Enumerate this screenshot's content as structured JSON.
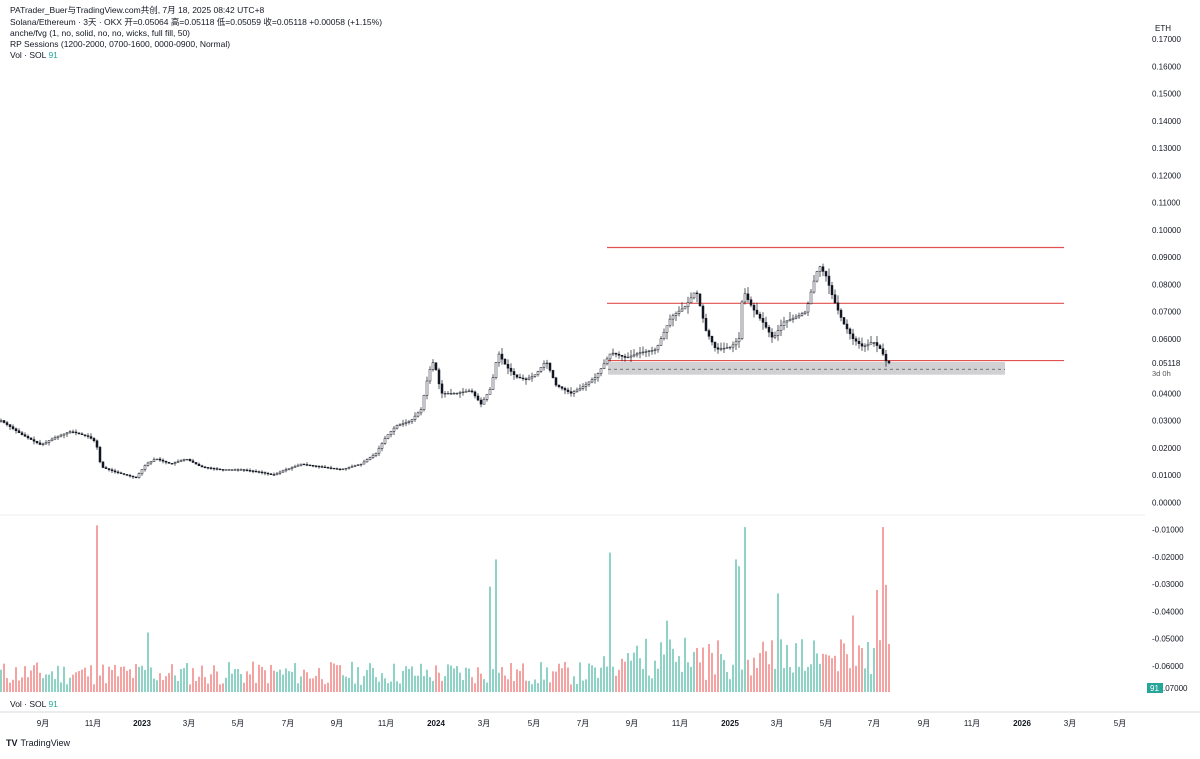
{
  "header": {
    "attribution": "PATrader_Buer与TradingView.com共创,  7月 18, 2025 08:42 UTC+8",
    "symbol_line": "Solana/Ethereum · 3天 · OKX  开=0.05064  高=0.05118  低=0.05059  收=0.05118  +0.00058 (+1.15%)",
    "indicator1": "anche/fvg (1, no, solid, no, no, wicks, full fill, 50)",
    "indicator2": "RP Sessions (1200-2000, 0700-1600, 0000-0900, Normal)",
    "vol_name": "Vol · SOL",
    "vol_value": "91"
  },
  "currency": "ETH",
  "brand": "TradingView",
  "colors": {
    "up": "#26a69a",
    "down": "#131722",
    "level_line": "#e0514f",
    "vol_up": "#8fd3c7",
    "vol_down": "#f4a3a3",
    "zone": "#c9c9cc",
    "current_price_label": "#131722"
  },
  "chart_data": {
    "type": "candlestick",
    "title": "Solana/Ethereum · 3天 · OKX",
    "ylabel": "ETH",
    "ylim": [
      -0.07,
      0.17
    ],
    "y_ticks": [
      "0.17000",
      "0.16000",
      "0.15000",
      "0.14000",
      "0.13000",
      "0.12000",
      "0.11000",
      "0.10000",
      "0.09000",
      "0.08000",
      "0.07000",
      "0.06000",
      "0.05000",
      "0.04000",
      "0.03000",
      "0.02000",
      "0.01000",
      "0.00000",
      "-0.01000",
      "-0.02000",
      "-0.03000",
      "-0.04000",
      "-0.05000",
      "-0.06000"
    ],
    "x_ticks": [
      "9月",
      "11月",
      "2023",
      "3月",
      "5月",
      "7月",
      "9月",
      "11月",
      "2024",
      "3月",
      "5月",
      "7月",
      "9月",
      "11月",
      "2025",
      "3月",
      "5月",
      "7月",
      "9月",
      "11月",
      "2026",
      "3月",
      "5月"
    ],
    "current_price": "0.05118",
    "countdown": "3d 0h",
    "vol_axis_label": "91",
    "vol_axis_bottom": "-0.07000",
    "price_path": [
      [
        0,
        0.03
      ],
      [
        20,
        0.025
      ],
      [
        40,
        0.021
      ],
      [
        55,
        0.024
      ],
      [
        70,
        0.026
      ],
      [
        88,
        0.024
      ],
      [
        95,
        0.022
      ],
      [
        100,
        0.013
      ],
      [
        115,
        0.011
      ],
      [
        135,
        0.009
      ],
      [
        145,
        0.014
      ],
      [
        155,
        0.016
      ],
      [
        170,
        0.014
      ],
      [
        185,
        0.016
      ],
      [
        200,
        0.013
      ],
      [
        220,
        0.012
      ],
      [
        240,
        0.012
      ],
      [
        260,
        0.011
      ],
      [
        272,
        0.01
      ],
      [
        285,
        0.012
      ],
      [
        300,
        0.014
      ],
      [
        320,
        0.013
      ],
      [
        340,
        0.012
      ],
      [
        360,
        0.014
      ],
      [
        375,
        0.018
      ],
      [
        385,
        0.024
      ],
      [
        395,
        0.028
      ],
      [
        410,
        0.03
      ],
      [
        420,
        0.034
      ],
      [
        428,
        0.048
      ],
      [
        433,
        0.052
      ],
      [
        440,
        0.04
      ],
      [
        455,
        0.04
      ],
      [
        470,
        0.041
      ],
      [
        480,
        0.036
      ],
      [
        490,
        0.042
      ],
      [
        497,
        0.055
      ],
      [
        505,
        0.05
      ],
      [
        515,
        0.046
      ],
      [
        525,
        0.045
      ],
      [
        535,
        0.047
      ],
      [
        545,
        0.052
      ],
      [
        555,
        0.043
      ],
      [
        570,
        0.04
      ],
      [
        580,
        0.042
      ],
      [
        595,
        0.046
      ],
      [
        610,
        0.055
      ],
      [
        625,
        0.053
      ],
      [
        640,
        0.055
      ],
      [
        655,
        0.056
      ],
      [
        670,
        0.068
      ],
      [
        685,
        0.072
      ],
      [
        695,
        0.078
      ],
      [
        705,
        0.063
      ],
      [
        715,
        0.056
      ],
      [
        730,
        0.057
      ],
      [
        738,
        0.06
      ],
      [
        742,
        0.078
      ],
      [
        746,
        0.075
      ],
      [
        752,
        0.071
      ],
      [
        762,
        0.066
      ],
      [
        772,
        0.06
      ],
      [
        782,
        0.066
      ],
      [
        795,
        0.068
      ],
      [
        805,
        0.07
      ],
      [
        812,
        0.08
      ],
      [
        818,
        0.087
      ],
      [
        825,
        0.083
      ],
      [
        832,
        0.075
      ],
      [
        842,
        0.066
      ],
      [
        852,
        0.06
      ],
      [
        862,
        0.057
      ],
      [
        872,
        0.059
      ],
      [
        880,
        0.056
      ],
      [
        886,
        0.051
      ],
      [
        889,
        0.05118
      ]
    ],
    "levels": [
      {
        "name": "top",
        "value": 0.0935
      },
      {
        "name": "mid",
        "value": 0.073
      },
      {
        "name": "low",
        "value": 0.052
      }
    ],
    "zone": {
      "top": 0.0515,
      "bottom": 0.0468,
      "dashed": 0.0488
    },
    "volume_spikes": [
      [
        97,
        0.98
      ],
      [
        148,
        0.35
      ],
      [
        490,
        0.62
      ],
      [
        495,
        0.78
      ],
      [
        610,
        0.82
      ],
      [
        667,
        0.42
      ],
      [
        735,
        0.78
      ],
      [
        739,
        0.74
      ],
      [
        745,
        0.97
      ],
      [
        778,
        0.58
      ],
      [
        853,
        0.45
      ],
      [
        876,
        0.6
      ],
      [
        881,
        0.97
      ],
      [
        885,
        0.63
      ]
    ]
  }
}
